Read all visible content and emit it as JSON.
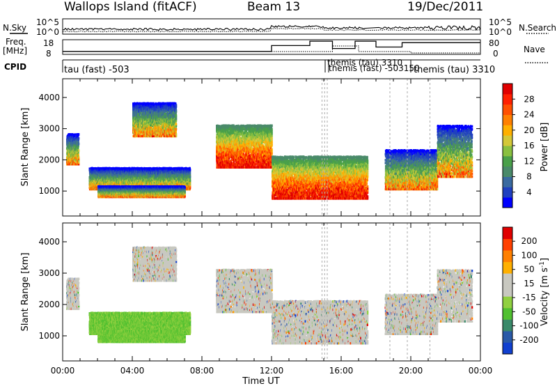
{
  "header": {
    "title": "Wallops Island (fitACF)",
    "beam": "Beam 13",
    "date": "19/Dec/2011"
  },
  "side_labels": {
    "nsky": "N.Sky",
    "nsearch": "N.Search",
    "freq_line1": "Freq.",
    "freq_line2": "[MHz]",
    "nave": "Nave",
    "cpid": "CPID"
  },
  "noise_axis_ticks": [
    "10^5",
    "10^0"
  ],
  "freq_axis_ticks": [
    "18",
    "8"
  ],
  "nave_axis_ticks": [
    "80",
    "0"
  ],
  "cpid_labels": [
    "tau (fast) -503",
    "themis (tau) 3310",
    "themis (fast) -503150",
    "themis (tau) 3310"
  ],
  "colors": {
    "power": [
      "#0000ff",
      "#2040c0",
      "#3a6aa0",
      "#4a8a6a",
      "#4aa04a",
      "#8ac040",
      "#d4c838",
      "#ffb000",
      "#ff8000",
      "#ff5000",
      "#ff2000",
      "#e00000"
    ],
    "velocity": [
      "#e00000",
      "#ff4000",
      "#ff8000",
      "#ffb000",
      "#c8c8c0",
      "#c8c8c0",
      "#90d040",
      "#50c030",
      "#3a8a6a",
      "#2a5aa8",
      "#1040d0"
    ],
    "grey": "#c8c8c0"
  },
  "chart_data": [
    {
      "type": "heatmap",
      "name": "power-panel",
      "ylabel": "Slant Range [km]",
      "ylim": [
        200,
        4600
      ],
      "yticks": [
        1000,
        2000,
        3000,
        4000
      ],
      "xlabel": "Time UT",
      "xlim": [
        0,
        24
      ],
      "xticks": [
        "00:00",
        "04:00",
        "08:00",
        "12:00",
        "16:00",
        "20:00",
        "00:00"
      ],
      "colorbar": {
        "label": "Power [dB]",
        "ticks": [
          "28",
          "24",
          "20",
          "16",
          "12",
          "8",
          "4"
        ],
        "range": [
          0,
          32
        ]
      },
      "echo_bands": [
        {
          "t": [
            0.2,
            0.9
          ],
          "r": [
            1900,
            2900
          ]
        },
        {
          "t": [
            1.5,
            7.3
          ],
          "r": [
            1100,
            1800
          ]
        },
        {
          "t": [
            2.0,
            7.0
          ],
          "r": [
            850,
            1200
          ]
        },
        {
          "t": [
            4.0,
            6.5
          ],
          "r": [
            2800,
            3900
          ]
        },
        {
          "t": [
            8.8,
            12.0
          ],
          "r": [
            1800,
            3200
          ]
        },
        {
          "t": [
            12.0,
            17.5
          ],
          "r": [
            800,
            2200
          ]
        },
        {
          "t": [
            18.5,
            21.5
          ],
          "r": [
            1100,
            2400
          ]
        },
        {
          "t": [
            21.5,
            23.5
          ],
          "r": [
            1500,
            3200
          ]
        }
      ]
    },
    {
      "type": "heatmap",
      "name": "velocity-panel",
      "ylabel": "Slant Range [km]",
      "ylim": [
        200,
        4600
      ],
      "yticks": [
        1000,
        2000,
        3000,
        4000
      ],
      "xlabel": "Time UT",
      "xlim": [
        0,
        24
      ],
      "xticks": [
        "00:00",
        "04:00",
        "08:00",
        "12:00",
        "16:00",
        "20:00",
        "00:00"
      ],
      "colorbar": {
        "label": "Velocity [m s^-1]",
        "ticks": [
          "200",
          "100",
          "50",
          "15",
          "-15",
          "-50",
          "-100",
          "-200"
        ],
        "range": [
          -250,
          250
        ]
      }
    },
    {
      "type": "line",
      "name": "noise-panel",
      "series": [
        {
          "name": "N.Sky"
        },
        {
          "name": "N.Search"
        }
      ]
    },
    {
      "type": "line",
      "name": "freq-nave-panel",
      "series": [
        {
          "name": "Freq."
        },
        {
          "name": "Nave"
        }
      ],
      "freq_steps": [
        {
          "t": [
            0,
            12
          ],
          "f": 10
        },
        {
          "t": [
            12,
            14.2
          ],
          "f": 14
        },
        {
          "t": [
            14.2,
            15.5
          ],
          "f": 17
        },
        {
          "t": [
            15.5,
            16.8
          ],
          "f": 12
        },
        {
          "t": [
            16.8,
            18.0
          ],
          "f": 17
        },
        {
          "t": [
            18.0,
            19.5
          ],
          "f": 13
        },
        {
          "t": [
            19.5,
            24
          ],
          "f": 16
        }
      ]
    }
  ]
}
